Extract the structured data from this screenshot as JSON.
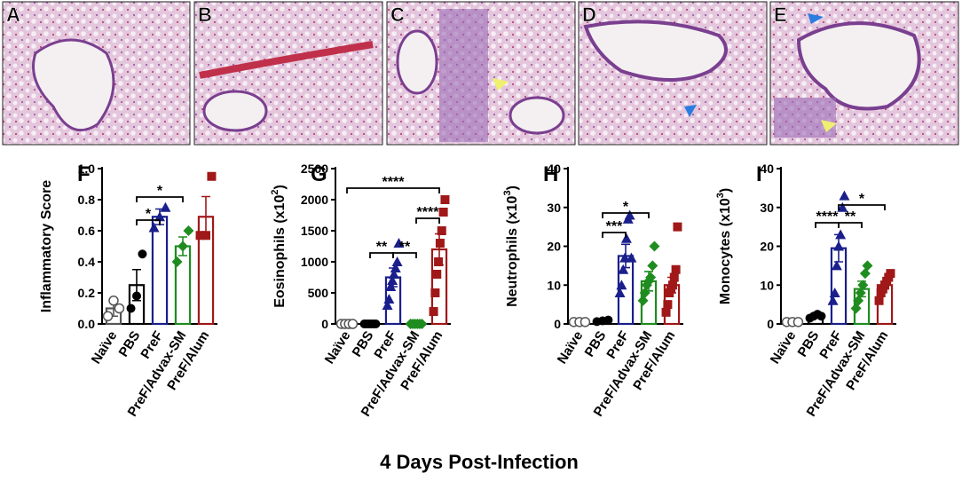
{
  "panels": [
    {
      "label": "A"
    },
    {
      "label": "B"
    },
    {
      "label": "C"
    },
    {
      "label": "D"
    },
    {
      "label": "E"
    }
  ],
  "chart_data": [
    {
      "type": "bar",
      "panel_label": "F",
      "y_label": "Inflammatory Score",
      "categories": [
        "Naïve",
        "PBS",
        "PreF",
        "PreF/Advax-SM",
        "PreF/Alum"
      ],
      "colors": [
        "#555555",
        "#000000",
        "#1a1f8c",
        "#1f8c1f",
        "#a01818"
      ],
      "markers": [
        "open-circle",
        "circle",
        "triangle",
        "diamond",
        "square"
      ],
      "values": [
        0.1,
        0.25,
        0.69,
        0.5,
        0.69
      ],
      "errors": [
        0.05,
        0.1,
        0.05,
        0.06,
        0.13
      ],
      "points": [
        [
          0.05,
          0.15,
          0.1
        ],
        [
          0.1,
          0.18,
          0.45
        ],
        [
          0.62,
          0.69,
          0.75
        ],
        [
          0.4,
          0.5,
          0.6
        ],
        [
          0.57,
          0.57,
          0.95
        ]
      ],
      "ylim": [
        0,
        1
      ],
      "yticks": [
        {
          "value": 0,
          "label": "0.0"
        },
        0.2,
        0.4,
        0.6,
        0.8,
        {
          "value": 1,
          "label": "1.0"
        }
      ],
      "significance": [
        {
          "pair": [
            1,
            2
          ],
          "label": "*"
        },
        {
          "pair": [
            1,
            3
          ],
          "label": "*"
        }
      ]
    },
    {
      "type": "bar",
      "panel_label": "G",
      "y_label": "Eosinophils (x10",
      "y_label_sup": "2",
      "y_label_end": ")",
      "categories": [
        "Naïve",
        "PBS",
        "PreF",
        "PreF/Advax-SM",
        "PreF/Alum"
      ],
      "colors": [
        "#555555",
        "#000000",
        "#1a1f8c",
        "#1f8c1f",
        "#a01818"
      ],
      "markers": [
        "open-circle",
        "circle",
        "triangle",
        "diamond",
        "square"
      ],
      "values": [
        0,
        0,
        750,
        0,
        1200
      ],
      "errors": [
        0,
        0,
        150,
        0,
        250
      ],
      "points": [
        [
          0,
          0,
          0,
          0
        ],
        [
          0,
          0,
          0,
          0,
          0,
          0
        ],
        [
          300,
          400,
          600,
          700,
          800,
          900,
          1000,
          1300
        ],
        [
          0,
          0,
          0,
          0,
          0,
          0
        ],
        [
          200,
          500,
          800,
          1000,
          1300,
          1500,
          1800,
          2000
        ]
      ],
      "ylim": [
        0,
        2500
      ],
      "yticks": [
        0,
        500,
        1000,
        1500,
        2000,
        2500
      ],
      "significance": [
        {
          "pair": [
            1,
            2
          ],
          "label": "**"
        },
        {
          "pair": [
            2,
            3
          ],
          "label": "**"
        },
        {
          "pair": [
            0,
            4
          ],
          "label": "****"
        },
        {
          "pair": [
            3,
            4
          ],
          "label": "****"
        }
      ]
    },
    {
      "type": "bar",
      "panel_label": "H",
      "y_label": "Neutrophils (x10",
      "y_label_sup": "3",
      "y_label_end": ")",
      "categories": [
        "Naïve",
        "PBS",
        "PreF",
        "PreF/Advax-SM",
        "PreF/Alum"
      ],
      "colors": [
        "#555555",
        "#000000",
        "#1a1f8c",
        "#1f8c1f",
        "#a01818"
      ],
      "markers": [
        "open-circle",
        "circle",
        "triangle",
        "diamond",
        "square"
      ],
      "values": [
        0.5,
        0.8,
        17.5,
        11,
        10
      ],
      "errors": [
        0.2,
        0.2,
        3,
        2.5,
        2
      ],
      "points": [
        [
          0.5,
          0.5,
          0.5
        ],
        [
          0.6,
          0.8,
          1
        ],
        [
          8,
          10,
          14,
          17,
          22,
          27,
          28,
          17
        ],
        [
          6,
          8,
          10,
          11,
          12,
          15,
          20
        ],
        [
          3,
          5,
          8,
          9,
          10,
          12,
          14,
          25
        ]
      ],
      "ylim": [
        0,
        40
      ],
      "yticks": [
        0,
        10,
        20,
        30,
        40
      ],
      "significance": [
        {
          "pair": [
            1,
            2
          ],
          "label": "***"
        },
        {
          "pair": [
            1,
            3
          ],
          "label": "*"
        }
      ]
    },
    {
      "type": "bar",
      "panel_label": "I",
      "y_label": "Monocytes (x10",
      "y_label_sup": "3",
      "y_label_end": ")",
      "categories": [
        "Naïve",
        "PBS",
        "PreF",
        "PreF/Advax-SM",
        "PreF/Alum"
      ],
      "colors": [
        "#555555",
        "#000000",
        "#1a1f8c",
        "#1f8c1f",
        "#a01818"
      ],
      "markers": [
        "open-circle",
        "circle",
        "triangle",
        "diamond",
        "square"
      ],
      "values": [
        0.5,
        2,
        19.5,
        9,
        10
      ],
      "errors": [
        0.2,
        0.5,
        3.5,
        2,
        1
      ],
      "points": [
        [
          0.5,
          0.5,
          0.5
        ],
        [
          1.5,
          2,
          2.5,
          2
        ],
        [
          6,
          8,
          15,
          20,
          23,
          30,
          33
        ],
        [
          4,
          6,
          8,
          10,
          13,
          15
        ],
        [
          6,
          8,
          9,
          10,
          11,
          12,
          13
        ]
      ],
      "ylim": [
        0,
        40
      ],
      "yticks": [
        0,
        10,
        20,
        30,
        40
      ],
      "significance": [
        {
          "pair": [
            1,
            2
          ],
          "label": "****"
        },
        {
          "pair": [
            2,
            3
          ],
          "label": "**"
        },
        {
          "pair": [
            2,
            4
          ],
          "label": "*"
        }
      ]
    }
  ],
  "caption": "4 Days Post-Infection"
}
